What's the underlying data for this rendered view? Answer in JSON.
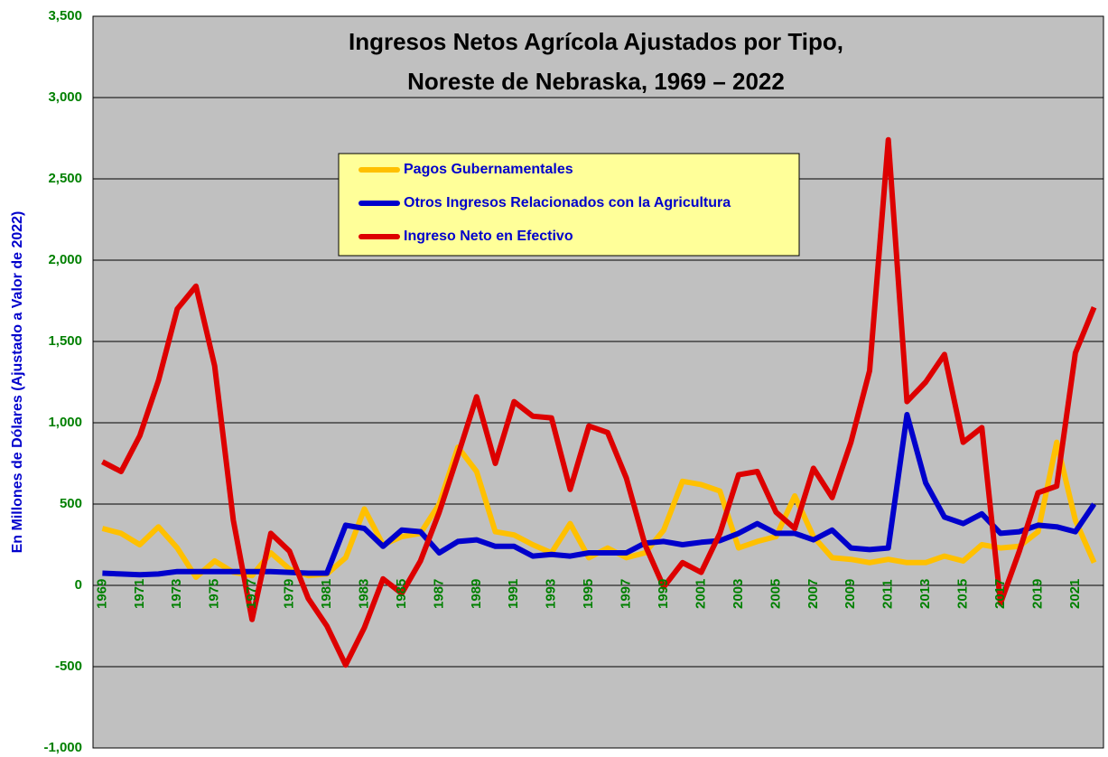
{
  "chart_data": {
    "type": "line",
    "title": "Ingresos Netos Agrícola Ajustados por Tipo,",
    "subtitle": "Noreste de Nebraska, 1969 – 2022",
    "y_label": "En Millones de Dólares (Ajustado a Valor de 2022)",
    "categories": [
      "1969",
      null,
      "1971",
      null,
      "1973",
      null,
      "1975",
      null,
      "1977",
      null,
      "1979",
      null,
      "1981",
      null,
      "1983",
      null,
      "1985",
      null,
      "1987",
      null,
      "1989",
      null,
      "1991",
      null,
      "1993",
      null,
      "1995",
      null,
      "1997",
      null,
      "1999",
      null,
      "2001",
      null,
      "2003",
      null,
      "2005",
      null,
      "2007",
      null,
      "2009",
      null,
      "2011",
      null,
      "2013",
      null,
      "2015",
      null,
      "2017",
      null,
      "2019",
      null,
      "2021",
      null
    ],
    "series": [
      {
        "name": "Pagos Gubernamentales",
        "color": "#ffc000",
        "values": [
          350,
          320,
          250,
          360,
          230,
          50,
          150,
          80,
          60,
          200,
          100,
          60,
          70,
          170,
          470,
          250,
          300,
          320,
          500,
          850,
          700,
          330,
          310,
          250,
          200,
          380,
          170,
          230,
          170,
          200,
          340,
          640,
          620,
          580,
          230,
          270,
          300,
          550,
          300,
          170,
          160,
          140,
          160,
          140,
          140,
          180,
          150,
          250,
          230,
          240,
          330,
          880,
          400,
          140
        ]
      },
      {
        "name": "Otros Ingresos Relacionados con la Agricultura",
        "color": "#0000cc",
        "values": [
          75,
          70,
          65,
          70,
          85,
          85,
          85,
          85,
          85,
          85,
          80,
          75,
          75,
          370,
          350,
          240,
          340,
          330,
          200,
          270,
          280,
          240,
          240,
          180,
          190,
          180,
          200,
          200,
          200,
          260,
          270,
          250,
          265,
          275,
          320,
          380,
          320,
          320,
          280,
          340,
          230,
          220,
          230,
          1050,
          630,
          420,
          380,
          440,
          320,
          330,
          370,
          360,
          330,
          500
        ]
      },
      {
        "name": "Ingreso Neto en Efectivo",
        "color": "#dd0000",
        "values": [
          760,
          700,
          920,
          1260,
          1700,
          1840,
          1350,
          400,
          -210,
          320,
          210,
          -80,
          -250,
          -490,
          -260,
          40,
          -50,
          150,
          450,
          800,
          1160,
          750,
          1130,
          1040,
          1030,
          590,
          980,
          940,
          660,
          250,
          -10,
          140,
          80,
          320,
          680,
          700,
          450,
          350,
          720,
          540,
          880,
          1320,
          2740,
          1130,
          1250,
          1420,
          880,
          970,
          -110,
          210,
          570,
          610,
          1430,
          1710
        ]
      }
    ],
    "ylim": [
      -1000,
      3500
    ],
    "yticks": [
      {
        "value": -1000,
        "label": "-1,000"
      },
      -500,
      0,
      {
        "value": 500,
        "label": "500"
      },
      {
        "value": 1000,
        "label": "1,000"
      },
      {
        "value": 1500,
        "label": "1,500"
      },
      {
        "value": 2000,
        "label": "2,000"
      },
      {
        "value": 2500,
        "label": "2,500"
      },
      {
        "value": 3000,
        "label": "3,000"
      },
      {
        "value": 3500,
        "label": "3,500"
      }
    ],
    "grid": true
  }
}
